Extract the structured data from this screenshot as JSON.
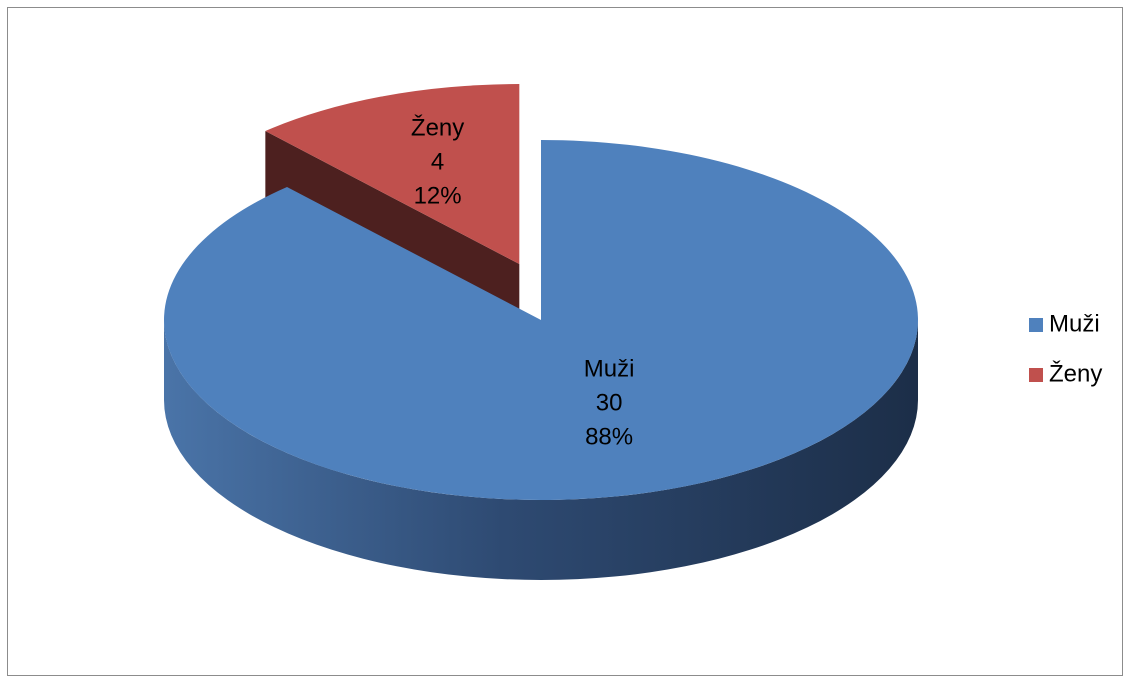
{
  "chart_data": {
    "type": "pie",
    "three_d": true,
    "categories": [
      "Muži",
      "Ženy"
    ],
    "values": [
      30,
      4
    ],
    "percent_labels": [
      "88%",
      "12%"
    ],
    "colors": [
      "#4f81bd",
      "#c0504d"
    ],
    "exploded": [
      false,
      true
    ],
    "legend": "right"
  }
}
